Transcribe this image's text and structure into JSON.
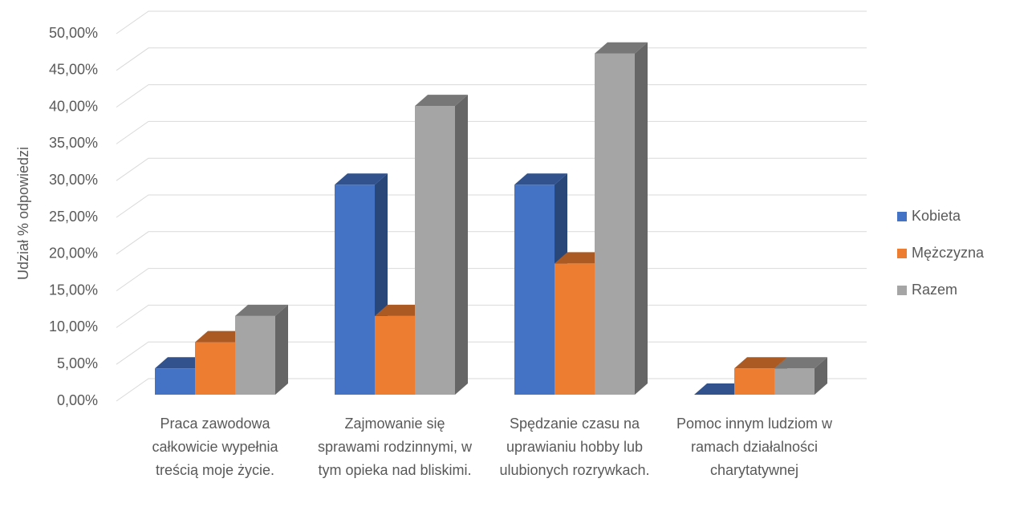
{
  "chart_data": {
    "type": "bar3d",
    "y_axis_label": "Udział % odpowiedzi",
    "categories": [
      "Praca zawodowa całkowicie wypełnia treścią moje życie.",
      "Zajmowanie się sprawami rodzinnymi, w tym opieka nad bliskimi.",
      "Spędzanie czasu na uprawianiu hobby lub ulubionych rozrywkach.",
      "Pomoc innym ludziom w ramach działalności charytatywnej"
    ],
    "series": [
      {
        "name": "Kobieta",
        "color": "#4472c4",
        "values": [
          3.57,
          28.57,
          28.57,
          0
        ]
      },
      {
        "name": "Mężczyzna",
        "color": "#ed7d31",
        "values": [
          7.14,
          10.71,
          17.86,
          3.57
        ]
      },
      {
        "name": "Razem",
        "color": "#a5a5a5",
        "values": [
          10.71,
          39.29,
          46.43,
          3.57
        ]
      }
    ],
    "ylim": [
      0,
      50
    ],
    "yticks": [
      {
        "value": 0,
        "label": "0,00%"
      },
      {
        "value": 5,
        "label": "5,00%"
      },
      {
        "value": 10,
        "label": "10,00%"
      },
      {
        "value": 15,
        "label": "15,00%"
      },
      {
        "value": 20,
        "label": "20,00%"
      },
      {
        "value": 25,
        "label": "25,00%"
      },
      {
        "value": 30,
        "label": "30,00%"
      },
      {
        "value": 35,
        "label": "35,00%"
      },
      {
        "value": 40,
        "label": "40,00%"
      },
      {
        "value": 45,
        "label": "45,00%"
      },
      {
        "value": 50,
        "label": "50,00%"
      }
    ],
    "grid": true,
    "legend": "right"
  }
}
